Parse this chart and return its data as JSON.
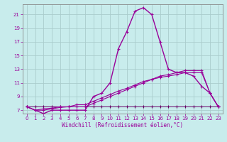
{
  "xlabel": "Windchill (Refroidissement éolien,°C)",
  "bg_color": "#c8ecec",
  "line_color": "#990099",
  "line_color2": "#660066",
  "grid_color": "#aacccc",
  "hours": [
    0,
    1,
    2,
    3,
    4,
    5,
    6,
    7,
    8,
    9,
    10,
    11,
    12,
    13,
    14,
    15,
    16,
    17,
    18,
    19,
    20,
    21,
    22,
    23
  ],
  "temp": [
    7.5,
    7.0,
    6.5,
    7.0,
    7.0,
    7.0,
    7.0,
    7.0,
    9.0,
    9.5,
    11.0,
    16.0,
    18.5,
    21.5,
    22.0,
    21.0,
    17.0,
    13.0,
    12.5,
    12.5,
    12.0,
    10.5,
    9.5,
    7.5
  ],
  "line_gradual1": [
    7.5,
    7.0,
    7.0,
    7.2,
    7.4,
    7.5,
    7.5,
    7.5,
    8.0,
    8.5,
    9.0,
    9.5,
    10.0,
    10.5,
    11.0,
    11.5,
    11.8,
    12.0,
    12.2,
    12.5,
    12.5,
    12.5,
    9.5,
    7.5
  ],
  "line_gradual2": [
    7.5,
    7.0,
    7.2,
    7.3,
    7.5,
    7.5,
    7.8,
    7.8,
    8.3,
    8.8,
    9.3,
    9.8,
    10.2,
    10.7,
    11.2,
    11.5,
    12.0,
    12.2,
    12.5,
    12.8,
    12.8,
    12.8,
    9.5,
    7.5
  ],
  "line_flat": [
    7.5,
    7.5,
    7.5,
    7.5,
    7.5,
    7.5,
    7.5,
    7.5,
    7.5,
    7.5,
    7.5,
    7.5,
    7.5,
    7.5,
    7.5,
    7.5,
    7.5,
    7.5,
    7.5,
    7.5,
    7.5,
    7.5,
    7.5,
    7.5
  ],
  "ylim": [
    6.5,
    22.5
  ],
  "yticks": [
    7,
    9,
    11,
    13,
    15,
    17,
    19,
    21
  ],
  "xlim": [
    -0.5,
    23.5
  ],
  "xticks": [
    0,
    1,
    2,
    3,
    4,
    5,
    6,
    7,
    8,
    9,
    10,
    11,
    12,
    13,
    14,
    15,
    16,
    17,
    18,
    19,
    20,
    21,
    22,
    23
  ]
}
